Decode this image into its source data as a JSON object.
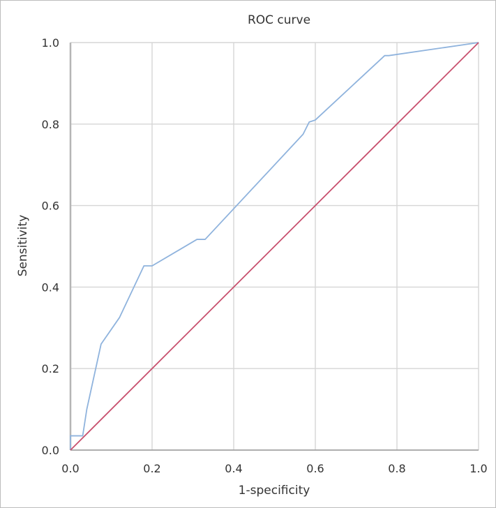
{
  "chart_data": {
    "type": "line",
    "title": "ROC curve",
    "xlabel": "1-specificity",
    "ylabel": "Sensitivity",
    "xlim": [
      0,
      1
    ],
    "ylim": [
      0,
      1
    ],
    "xticks": [
      0.0,
      0.2,
      0.4,
      0.6,
      0.8,
      1.0
    ],
    "yticks": [
      0.0,
      0.2,
      0.4,
      0.6,
      0.8,
      1.0
    ],
    "xtick_labels": [
      "0.0",
      "0.2",
      "0.4",
      "0.6",
      "0.8",
      "1.0"
    ],
    "ytick_labels": [
      "0.0",
      "0.2",
      "0.4",
      "0.6",
      "0.8",
      "1.0"
    ],
    "grid": true,
    "legend": "none",
    "series": [
      {
        "color": "#8fb3dd",
        "x": [
          0.0,
          0.0,
          0.01,
          0.03,
          0.04,
          0.075,
          0.12,
          0.18,
          0.2,
          0.31,
          0.33,
          0.57,
          0.585,
          0.6,
          0.77,
          0.78,
          1.0
        ],
        "y": [
          0.0,
          0.035,
          0.035,
          0.035,
          0.1,
          0.26,
          0.325,
          0.452,
          0.452,
          0.517,
          0.517,
          0.775,
          0.805,
          0.81,
          0.968,
          0.968,
          1.0
        ]
      },
      {
        "color": "#c8506e",
        "x": [
          0.0,
          1.0
        ],
        "y": [
          0.0,
          1.0
        ]
      }
    ]
  }
}
